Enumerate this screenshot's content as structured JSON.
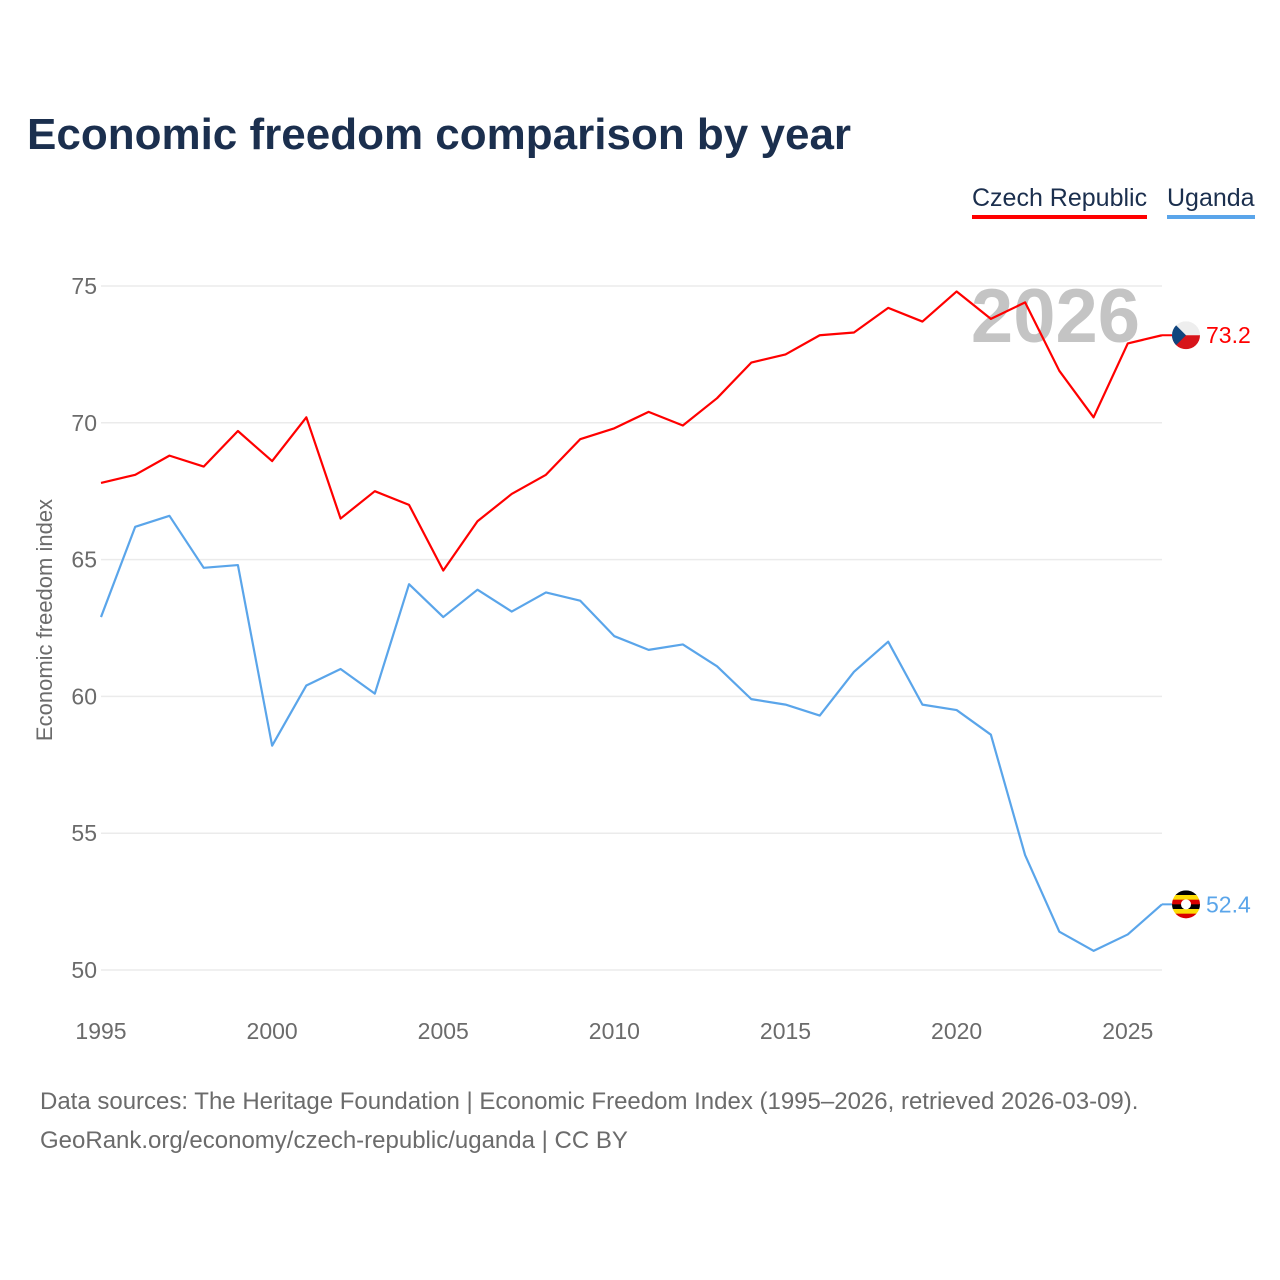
{
  "chart_data": {
    "type": "line",
    "title": "Economic freedom comparison by year",
    "xlabel": "",
    "ylabel": "Economic freedom index",
    "xlim": [
      1995,
      2026
    ],
    "ylim": [
      50,
      75
    ],
    "yticks": [
      50,
      55,
      60,
      65,
      70,
      75
    ],
    "xticks": [
      1995,
      2000,
      2005,
      2010,
      2015,
      2020,
      2025
    ],
    "grid": true,
    "legend_position": "top-right",
    "watermark_year": "2026",
    "x": [
      1995,
      1996,
      1997,
      1998,
      1999,
      2000,
      2001,
      2002,
      2003,
      2004,
      2005,
      2006,
      2007,
      2008,
      2009,
      2010,
      2011,
      2012,
      2013,
      2014,
      2015,
      2016,
      2017,
      2018,
      2019,
      2020,
      2021,
      2022,
      2023,
      2024,
      2025,
      2026
    ],
    "series": [
      {
        "name": "Czech Republic",
        "color": "#ff0000",
        "end_label": "73.2",
        "values": [
          67.8,
          68.1,
          68.8,
          68.4,
          69.7,
          68.6,
          70.2,
          66.5,
          67.5,
          67.0,
          64.6,
          66.4,
          67.4,
          68.1,
          69.4,
          69.8,
          70.4,
          69.9,
          70.9,
          72.2,
          72.5,
          73.2,
          73.3,
          74.2,
          73.7,
          74.8,
          73.8,
          74.4,
          71.9,
          70.2,
          72.9,
          73.2
        ]
      },
      {
        "name": "Uganda",
        "color": "#5aa5ea",
        "end_label": "52.4",
        "values": [
          62.9,
          66.2,
          66.6,
          64.7,
          64.8,
          58.2,
          60.4,
          61.0,
          60.1,
          64.1,
          62.9,
          63.9,
          63.1,
          63.8,
          63.5,
          62.2,
          61.7,
          61.9,
          61.1,
          59.9,
          59.7,
          59.3,
          60.9,
          62.0,
          59.7,
          59.5,
          58.6,
          54.2,
          51.4,
          50.7,
          51.3,
          52.4
        ]
      }
    ]
  },
  "footer": {
    "line1": "Data sources: The Heritage Foundation | Economic Freedom Index (1995–2026, retrieved 2026-03-09).",
    "line2": "GeoRank.org/economy/czech-republic/uganda | CC BY"
  }
}
